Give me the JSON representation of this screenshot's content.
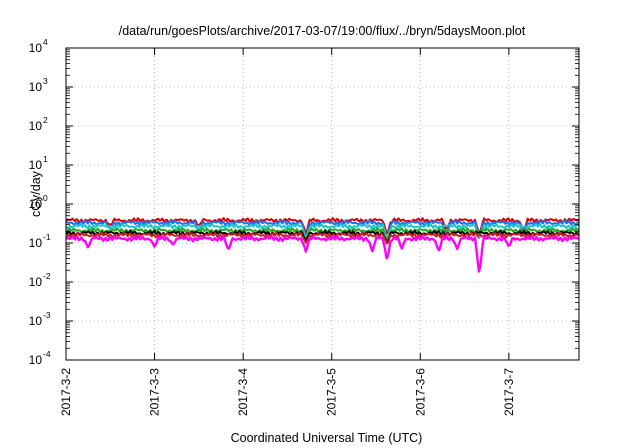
{
  "chart_data": {
    "type": "line",
    "title": "/data/run/goesPlots/archive/2017-03-07/19:00/flux/../bryn/5daysMoon.plot",
    "xlabel": "Coordinated Universal Time (UTC)",
    "ylabel": "cGy/day",
    "yscale": "log",
    "ylim": [
      0.0001,
      10000
    ],
    "y_ticks": [
      {
        "base": "10",
        "exp": "-4",
        "value": 0.0001
      },
      {
        "base": "10",
        "exp": "-3",
        "value": 0.001
      },
      {
        "base": "10",
        "exp": "-2",
        "value": 0.01
      },
      {
        "base": "10",
        "exp": "-1",
        "value": 0.1
      },
      {
        "base": "10",
        "exp": "0",
        "value": 1
      },
      {
        "base": "10",
        "exp": "1",
        "value": 10
      },
      {
        "base": "10",
        "exp": "2",
        "value": 100
      },
      {
        "base": "10",
        "exp": "3",
        "value": 1000
      },
      {
        "base": "10",
        "exp": "4",
        "value": 10000
      }
    ],
    "x_range": [
      "2017-03-02T00:00",
      "2017-03-07T19:00"
    ],
    "x_ticks": [
      {
        "label": "2017-3-2",
        "date": "2017-03-02"
      },
      {
        "label": "2017-3-3",
        "date": "2017-03-03"
      },
      {
        "label": "2017-3-4",
        "date": "2017-03-04"
      },
      {
        "label": "2017-3-5",
        "date": "2017-03-05"
      },
      {
        "label": "2017-3-6",
        "date": "2017-03-06"
      },
      {
        "label": "2017-3-7",
        "date": "2017-03-07"
      }
    ],
    "grid": true,
    "legend": "none",
    "series": [
      {
        "color": "#dd0000",
        "baseline": 0.38,
        "dips": [
          [
            "2017-03-02T12:00",
            0.28
          ],
          [
            "2017-03-03T12:00",
            0.27
          ],
          [
            "2017-03-04T17:00",
            0.17
          ],
          [
            "2017-03-05T15:00",
            0.16
          ],
          [
            "2017-03-06T07:00",
            0.22
          ],
          [
            "2017-03-06T16:00",
            0.17
          ],
          [
            "2017-03-07T04:00",
            0.2
          ]
        ]
      },
      {
        "color": "#1f6fff",
        "baseline": 0.33,
        "dips": [
          [
            "2017-03-02T12:00",
            0.22
          ],
          [
            "2017-03-03T12:00",
            0.2
          ],
          [
            "2017-03-04T17:00",
            0.12
          ],
          [
            "2017-03-05T15:00",
            0.1
          ],
          [
            "2017-03-06T07:00",
            0.16
          ],
          [
            "2017-03-06T16:00",
            0.12
          ],
          [
            "2017-03-07T04:00",
            0.15
          ]
        ]
      },
      {
        "color": "#19c9c9",
        "baseline": 0.27,
        "dips": [
          [
            "2017-03-04T17:00",
            0.13
          ],
          [
            "2017-03-05T15:00",
            0.12
          ],
          [
            "2017-03-06T16:00",
            0.13
          ]
        ]
      },
      {
        "color": "#22aa22",
        "baseline": 0.21,
        "dips": [
          [
            "2017-03-04T17:00",
            0.12
          ],
          [
            "2017-03-05T15:00",
            0.11
          ]
        ]
      },
      {
        "color": "#000000",
        "baseline": 0.18,
        "dips": [
          [
            "2017-03-04T17:00",
            0.11
          ],
          [
            "2017-03-05T15:00",
            0.1
          ]
        ]
      },
      {
        "color": "#cc2222",
        "baseline": 0.16,
        "dips": [
          [
            "2017-03-04T17:00",
            0.1
          ],
          [
            "2017-03-05T15:00",
            0.09
          ]
        ]
      },
      {
        "color": "#ff00ff",
        "baseline": 0.13,
        "dips": [
          [
            "2017-03-02T06:00",
            0.075
          ],
          [
            "2017-03-03T00:00",
            0.08
          ],
          [
            "2017-03-03T05:00",
            0.09
          ],
          [
            "2017-03-03T20:00",
            0.065
          ],
          [
            "2017-03-04T17:00",
            0.06
          ],
          [
            "2017-03-05T11:00",
            0.06
          ],
          [
            "2017-03-05T15:00",
            0.035
          ],
          [
            "2017-03-05T19:00",
            0.07
          ],
          [
            "2017-03-06T05:00",
            0.06
          ],
          [
            "2017-03-06T10:00",
            0.07
          ],
          [
            "2017-03-06T16:00",
            0.015
          ],
          [
            "2017-03-07T00:00",
            0.08
          ]
        ]
      }
    ]
  }
}
